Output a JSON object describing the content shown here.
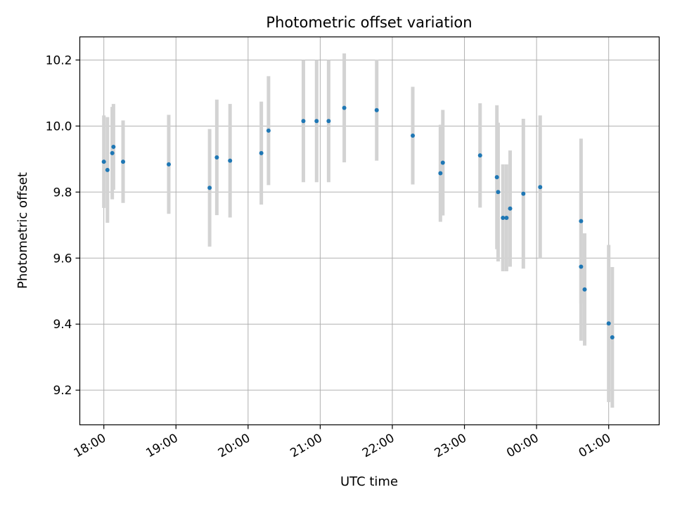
{
  "chart_data": {
    "type": "scatter",
    "title": "Photometric offset variation",
    "xlabel": "UTC time",
    "ylabel": "Photometric offset",
    "x_axis_kind": "time",
    "xlim": [
      "17:40",
      "01:42"
    ],
    "ylim": [
      9.095,
      10.27
    ],
    "x_ticks": [
      "18:00",
      "19:00",
      "20:00",
      "21:00",
      "22:00",
      "23:00",
      "00:00",
      "01:00"
    ],
    "y_ticks": [
      9.2,
      9.4,
      9.6,
      9.8,
      10.0,
      10.2
    ],
    "grid": true,
    "legend": "none",
    "colors": {
      "point": "#1f77b4",
      "errorbar": "#d3d3d3",
      "grid": "#b0b0b0"
    },
    "series": [
      {
        "points": [
          {
            "x": "18:00",
            "y": 9.892,
            "err": 0.14
          },
          {
            "x": "18:03",
            "y": 9.867,
            "err": 0.16
          },
          {
            "x": "18:07",
            "y": 9.918,
            "err": 0.14
          },
          {
            "x": "18:08",
            "y": 9.937,
            "err": 0.13
          },
          {
            "x": "18:16",
            "y": 9.892,
            "err": 0.125
          },
          {
            "x": "18:54",
            "y": 9.884,
            "err": 0.15
          },
          {
            "x": "19:28",
            "y": 9.813,
            "err": 0.178
          },
          {
            "x": "19:34",
            "y": 9.905,
            "err": 0.175
          },
          {
            "x": "19:45",
            "y": 9.895,
            "err": 0.172
          },
          {
            "x": "20:11",
            "y": 9.918,
            "err": 0.156
          },
          {
            "x": "20:17",
            "y": 9.986,
            "err": 0.165
          },
          {
            "x": "20:46",
            "y": 10.015,
            "err": 0.185
          },
          {
            "x": "20:57",
            "y": 10.015,
            "err": 0.185
          },
          {
            "x": "21:07",
            "y": 10.015,
            "err": 0.185
          },
          {
            "x": "21:20",
            "y": 10.055,
            "err": 0.165
          },
          {
            "x": "21:47",
            "y": 10.048,
            "err": 0.153
          },
          {
            "x": "22:17",
            "y": 9.971,
            "err": 0.148
          },
          {
            "x": "22:40",
            "y": 9.857,
            "err": 0.147
          },
          {
            "x": "22:42",
            "y": 9.889,
            "err": 0.16
          },
          {
            "x": "23:13",
            "y": 9.911,
            "err": 0.158
          },
          {
            "x": "23:27",
            "y": 9.845,
            "err": 0.218
          },
          {
            "x": "23:28",
            "y": 9.8,
            "err": 0.21
          },
          {
            "x": "23:32",
            "y": 9.722,
            "err": 0.162
          },
          {
            "x": "23:35",
            "y": 9.722,
            "err": 0.162
          },
          {
            "x": "23:38",
            "y": 9.75,
            "err": 0.176
          },
          {
            "x": "23:49",
            "y": 9.795,
            "err": 0.227
          },
          {
            "x": "00:03",
            "y": 9.815,
            "err": 0.217
          },
          {
            "x": "00:37",
            "y": 9.712,
            "err": 0.25
          },
          {
            "x": "00:37",
            "y": 9.574,
            "err": 0.224
          },
          {
            "x": "00:40",
            "y": 9.505,
            "err": 0.17
          },
          {
            "x": "01:00",
            "y": 9.402,
            "err": 0.238
          },
          {
            "x": "01:03",
            "y": 9.36,
            "err": 0.213
          }
        ]
      }
    ]
  }
}
